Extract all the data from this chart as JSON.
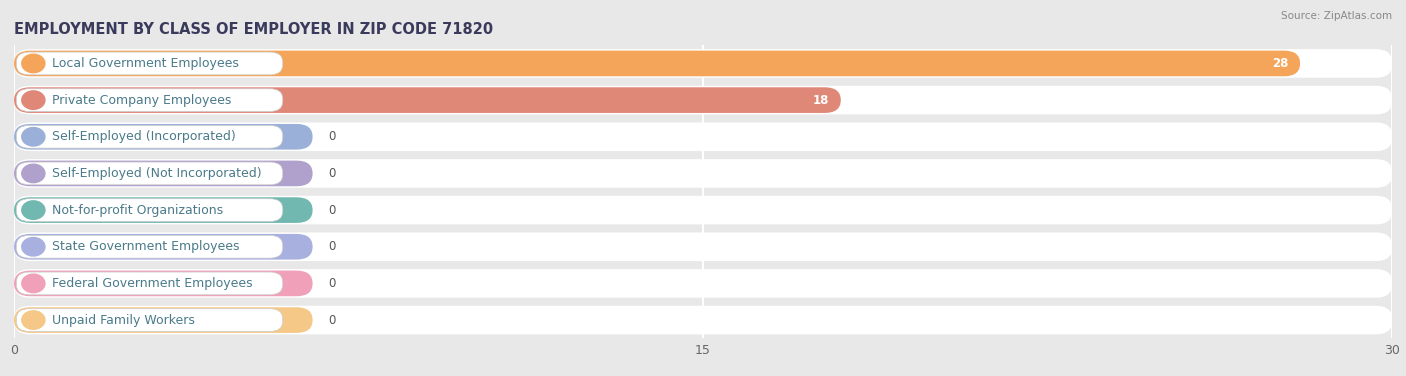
{
  "title": "EMPLOYMENT BY CLASS OF EMPLOYER IN ZIP CODE 71820",
  "source": "Source: ZipAtlas.com",
  "categories": [
    "Local Government Employees",
    "Private Company Employees",
    "Self-Employed (Incorporated)",
    "Self-Employed (Not Incorporated)",
    "Not-for-profit Organizations",
    "State Government Employees",
    "Federal Government Employees",
    "Unpaid Family Workers"
  ],
  "values": [
    28,
    18,
    0,
    0,
    0,
    0,
    0,
    0
  ],
  "bar_colors": [
    "#f5a55a",
    "#e08878",
    "#9ab0d8",
    "#b0a0cc",
    "#70b8b0",
    "#a8b0e0",
    "#f0a0b8",
    "#f5c888"
  ],
  "label_text_color": "#4a7a8a",
  "xlim": [
    0,
    30
  ],
  "xticks": [
    0,
    15,
    30
  ],
  "bg_color": "#e8e8e8",
  "row_bg_color": "#ffffff",
  "title_fontsize": 10.5,
  "label_fontsize": 9,
  "value_fontsize": 8.5,
  "bar_height": 0.7,
  "zero_bar_extent": 6.5
}
